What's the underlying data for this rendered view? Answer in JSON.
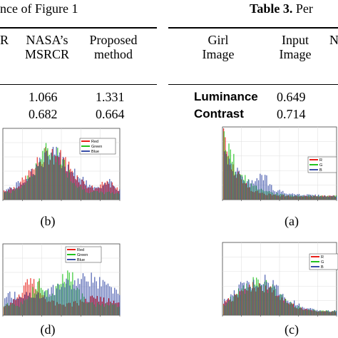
{
  "left_caption": {
    "text": "nce of Figure 1"
  },
  "right_caption": {
    "label": "Table 3.",
    "text": "Per"
  },
  "left_table": {
    "headers": [
      {
        "line1": "R",
        "line2": ""
      },
      {
        "line1": "NASA’s",
        "line2": "MSRCR"
      },
      {
        "line1": "Proposed",
        "line2": "method"
      }
    ],
    "rows": [
      {
        "cells": [
          "1.066",
          "1.331"
        ]
      },
      {
        "cells": [
          "0.682",
          "0.664"
        ]
      }
    ]
  },
  "right_table": {
    "headers": [
      {
        "line1": "Girl",
        "line2": "Image"
      },
      {
        "line1": "Input",
        "line2": "Image"
      },
      {
        "line1": "N",
        "line2": ""
      }
    ],
    "rows": [
      {
        "label": "Luminance",
        "value": "0.649"
      },
      {
        "label": "Contrast",
        "value": "0.714"
      }
    ]
  },
  "panels": [
    {
      "label": "(b)"
    },
    {
      "label": "(a)"
    },
    {
      "label": "(d)"
    },
    {
      "label": "(c)"
    }
  ],
  "legend": {
    "full": [
      "Red",
      "Green",
      "Blue"
    ],
    "clipped_a": [
      "R",
      "G",
      "B"
    ],
    "clipped_c": [
      "R",
      "G",
      "B"
    ]
  },
  "colors": {
    "red": "#e8201a",
    "green": "#22c21f",
    "blue": "#3a4fa8",
    "text": "#000000"
  },
  "chart_data": [
    {
      "type": "histogram",
      "panel": "(b)",
      "series": [
        {
          "name": "Red"
        },
        {
          "name": "Green"
        },
        {
          "name": "Blue"
        }
      ]
    },
    {
      "type": "histogram",
      "panel": "(a)",
      "series": [
        {
          "name": "R"
        },
        {
          "name": "G"
        },
        {
          "name": "B"
        }
      ]
    },
    {
      "type": "histogram",
      "panel": "(d)",
      "series": [
        {
          "name": "Red"
        },
        {
          "name": "Green"
        },
        {
          "name": "Blue"
        }
      ]
    },
    {
      "type": "histogram",
      "panel": "(c)",
      "series": [
        {
          "name": "R"
        },
        {
          "name": "G"
        },
        {
          "name": "B"
        }
      ]
    }
  ]
}
